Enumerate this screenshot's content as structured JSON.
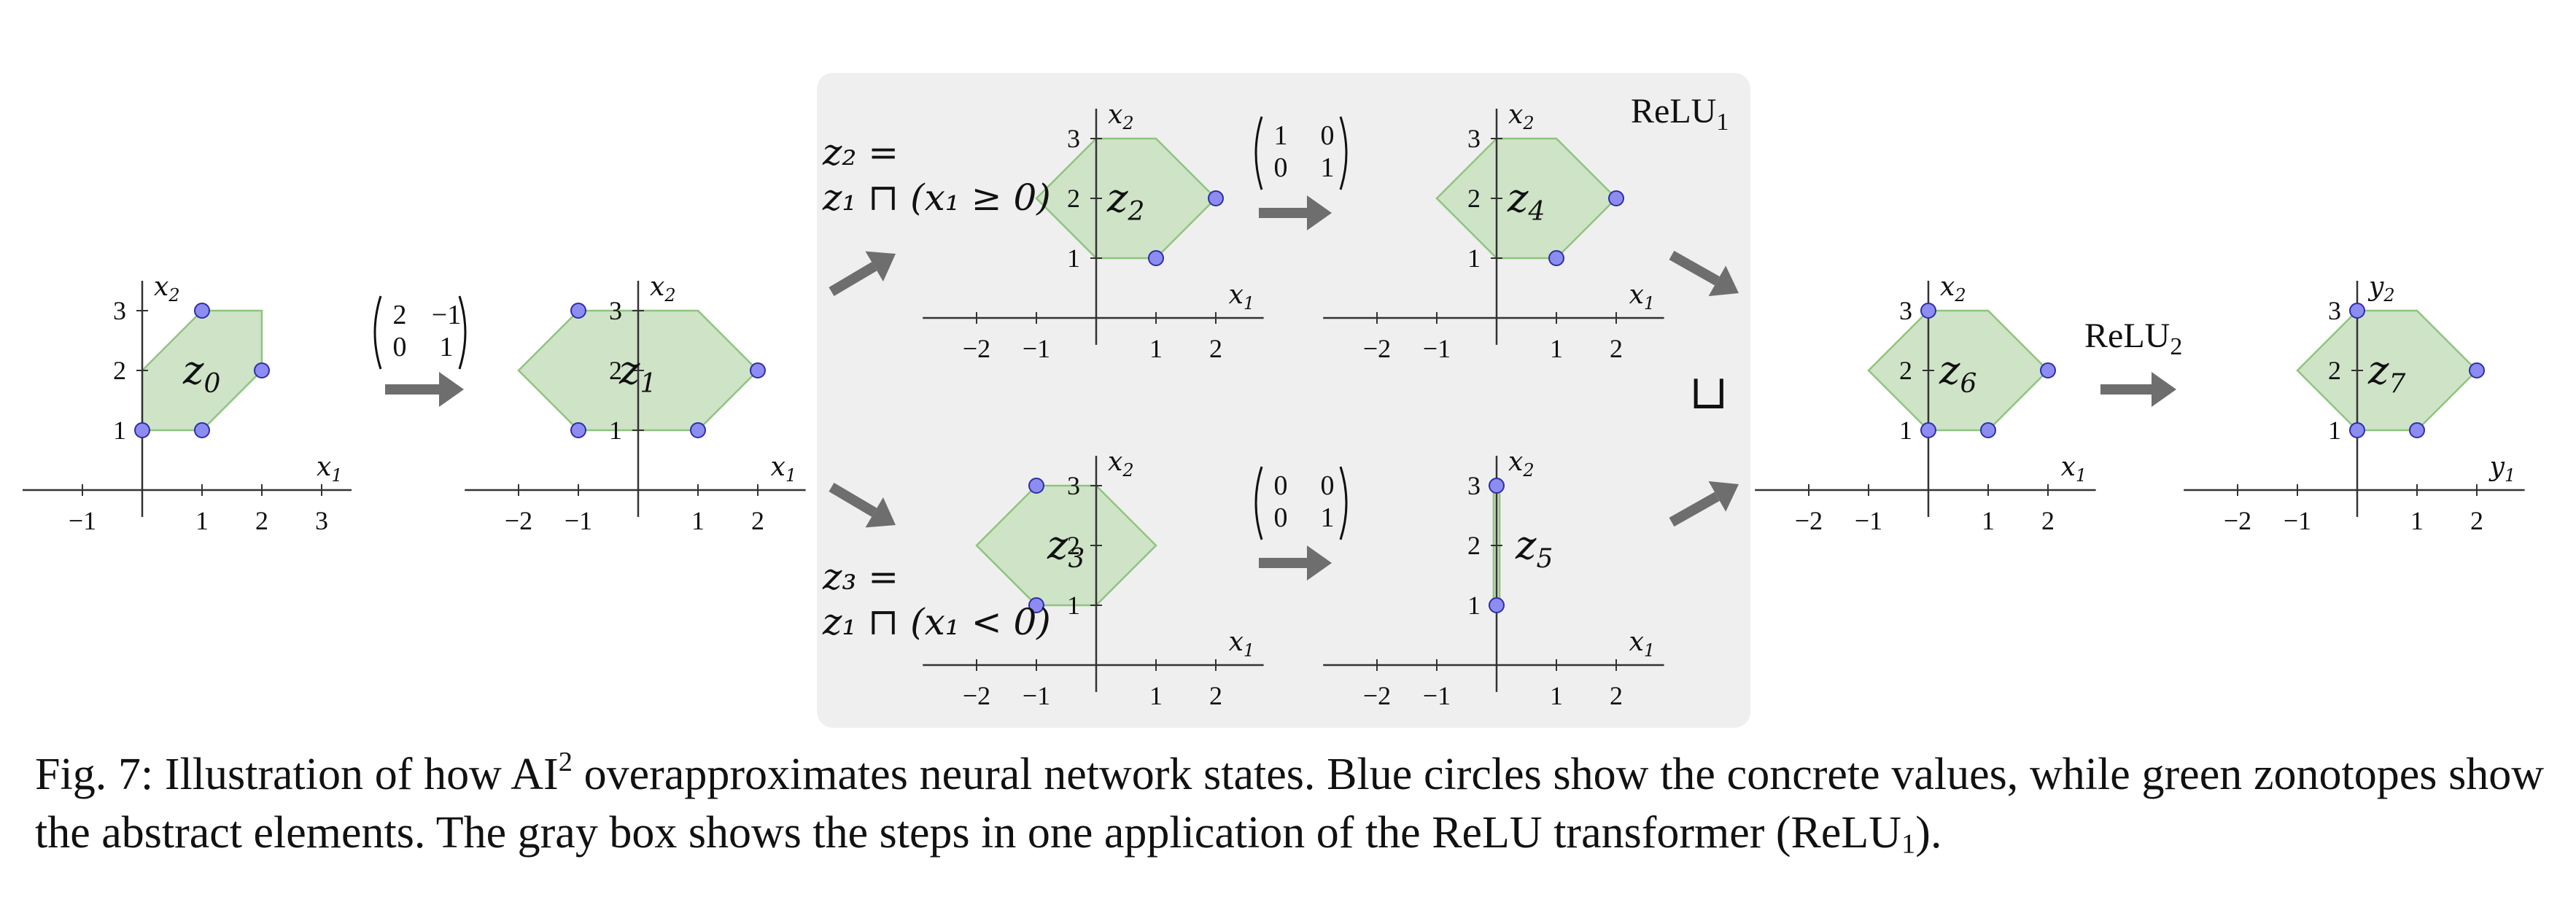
{
  "plots": [
    {
      "id": "z0",
      "label": "z",
      "label_sub": "0",
      "axis_x": "x",
      "axis_x_sub": "1",
      "axis_y": "x",
      "axis_y_sub": "2",
      "x_ticks": [
        "−1",
        "1",
        "2",
        "3"
      ],
      "x_tick_values": [
        -1,
        1,
        2,
        3
      ],
      "y_ticks": [
        "1",
        "2",
        "3"
      ],
      "y_tick_values": [
        1,
        2,
        3
      ],
      "polygon": [
        [
          0,
          1
        ],
        [
          0,
          2
        ],
        [
          1,
          3
        ],
        [
          2,
          3
        ],
        [
          2,
          2
        ],
        [
          1,
          1
        ]
      ],
      "points": [
        [
          0,
          1
        ],
        [
          1,
          1
        ],
        [
          2,
          2
        ],
        [
          1,
          3
        ]
      ]
    },
    {
      "id": "z1",
      "label": "z",
      "label_sub": "1",
      "axis_x": "x",
      "axis_x_sub": "1",
      "axis_y": "x",
      "axis_y_sub": "2",
      "x_ticks": [
        "−2",
        "−1",
        "1",
        "2"
      ],
      "x_tick_values": [
        -2,
        -1,
        1,
        2
      ],
      "y_ticks": [
        "1",
        "2",
        "3"
      ],
      "y_tick_values": [
        1,
        2,
        3
      ],
      "polygon": [
        [
          -1,
          1
        ],
        [
          -2,
          2
        ],
        [
          -1,
          3
        ],
        [
          1,
          3
        ],
        [
          2,
          2
        ],
        [
          1,
          1
        ]
      ],
      "points": [
        [
          -1,
          1
        ],
        [
          1,
          1
        ],
        [
          2,
          2
        ],
        [
          -1,
          3
        ]
      ]
    },
    {
      "id": "z2",
      "label": "z",
      "label_sub": "2",
      "axis_x": "x",
      "axis_x_sub": "1",
      "axis_y": "x",
      "axis_y_sub": "2",
      "x_ticks": [
        "−2",
        "−1",
        "1",
        "2"
      ],
      "x_tick_values": [
        -2,
        -1,
        1,
        2
      ],
      "y_ticks": [
        "1",
        "2",
        "3"
      ],
      "y_tick_values": [
        1,
        2,
        3
      ],
      "polygon": [
        [
          0,
          1
        ],
        [
          -1,
          2
        ],
        [
          0,
          3
        ],
        [
          1,
          3
        ],
        [
          2,
          2
        ],
        [
          1,
          1
        ]
      ],
      "points": [
        [
          1,
          1
        ],
        [
          2,
          2
        ]
      ]
    },
    {
      "id": "z4",
      "label": "z",
      "label_sub": "4",
      "axis_x": "x",
      "axis_x_sub": "1",
      "axis_y": "x",
      "axis_y_sub": "2",
      "x_ticks": [
        "−2",
        "−1",
        "1",
        "2"
      ],
      "x_tick_values": [
        -2,
        -1,
        1,
        2
      ],
      "y_ticks": [
        "1",
        "2",
        "3"
      ],
      "y_tick_values": [
        1,
        2,
        3
      ],
      "polygon": [
        [
          0,
          1
        ],
        [
          -1,
          2
        ],
        [
          0,
          3
        ],
        [
          1,
          3
        ],
        [
          2,
          2
        ],
        [
          1,
          1
        ]
      ],
      "points": [
        [
          1,
          1
        ],
        [
          2,
          2
        ]
      ]
    },
    {
      "id": "z3",
      "label": "z",
      "label_sub": "3",
      "axis_x": "x",
      "axis_x_sub": "1",
      "axis_y": "x",
      "axis_y_sub": "2",
      "x_ticks": [
        "−2",
        "−1",
        "1",
        "2"
      ],
      "x_tick_values": [
        -2,
        -1,
        1,
        2
      ],
      "y_ticks": [
        "1",
        "2",
        "3"
      ],
      "y_tick_values": [
        1,
        2,
        3
      ],
      "polygon": [
        [
          -1,
          1
        ],
        [
          -2,
          2
        ],
        [
          -1,
          3
        ],
        [
          0,
          3
        ],
        [
          1,
          2
        ],
        [
          0,
          1
        ]
      ],
      "points": [
        [
          -1,
          1
        ],
        [
          -1,
          3
        ]
      ]
    },
    {
      "id": "z5",
      "label": "z",
      "label_sub": "5",
      "axis_x": "x",
      "axis_x_sub": "1",
      "axis_y": "x",
      "axis_y_sub": "2",
      "x_ticks": [
        "−2",
        "−1",
        "1",
        "2"
      ],
      "x_tick_values": [
        -2,
        -1,
        1,
        2
      ],
      "y_ticks": [
        "1",
        "2",
        "3"
      ],
      "y_tick_values": [
        1,
        2,
        3
      ],
      "polygon": [
        [
          -0.05,
          1
        ],
        [
          -0.05,
          3
        ],
        [
          0.05,
          3
        ],
        [
          0.05,
          1
        ]
      ],
      "points": [
        [
          0,
          1
        ],
        [
          0,
          3
        ]
      ]
    },
    {
      "id": "z6",
      "label": "z",
      "label_sub": "6",
      "axis_x": "x",
      "axis_x_sub": "1",
      "axis_y": "x",
      "axis_y_sub": "2",
      "x_ticks": [
        "−2",
        "−1",
        "1",
        "2"
      ],
      "x_tick_values": [
        -2,
        -1,
        1,
        2
      ],
      "y_ticks": [
        "1",
        "2",
        "3"
      ],
      "y_tick_values": [
        1,
        2,
        3
      ],
      "polygon": [
        [
          0,
          1
        ],
        [
          -1,
          2
        ],
        [
          0,
          3
        ],
        [
          1,
          3
        ],
        [
          2,
          2
        ],
        [
          1,
          1
        ]
      ],
      "points": [
        [
          0,
          1
        ],
        [
          1,
          1
        ],
        [
          2,
          2
        ],
        [
          0,
          3
        ]
      ]
    },
    {
      "id": "z7",
      "label": "z",
      "label_sub": "7",
      "axis_x": "y",
      "axis_x_sub": "1",
      "axis_y": "y",
      "axis_y_sub": "2",
      "x_ticks": [
        "−2",
        "−1",
        "1",
        "2"
      ],
      "x_tick_values": [
        -2,
        -1,
        1,
        2
      ],
      "y_ticks": [
        "1",
        "2",
        "3"
      ],
      "y_tick_values": [
        1,
        2,
        3
      ],
      "polygon": [
        [
          0,
          1
        ],
        [
          -1,
          2
        ],
        [
          0,
          3
        ],
        [
          1,
          3
        ],
        [
          2,
          2
        ],
        [
          1,
          1
        ]
      ],
      "points": [
        [
          0,
          1
        ],
        [
          1,
          1
        ],
        [
          2,
          2
        ],
        [
          0,
          3
        ]
      ]
    }
  ],
  "matrices": [
    {
      "id": "W1",
      "rows": [
        [
          "2",
          "−1"
        ],
        [
          "0",
          "1"
        ]
      ]
    },
    {
      "id": "proj_keep",
      "rows": [
        [
          "1",
          "0"
        ],
        [
          "0",
          "1"
        ]
      ]
    },
    {
      "id": "proj_zero",
      "rows": [
        [
          "0",
          "0"
        ],
        [
          "0",
          "1"
        ]
      ]
    }
  ],
  "relu1": {
    "name": "ReLU",
    "sub": "1"
  },
  "relu2": {
    "name": "ReLU",
    "sub": "2"
  },
  "join_symbol": "⊔",
  "z2_def": {
    "line1": "z₂ =",
    "line2": "z₁ ⊓ (x₁ ≥ 0)"
  },
  "z3_def": {
    "line1": "z₃ =",
    "line2": "z₁ ⊓ (x₁ < 0)"
  },
  "caption": {
    "p1": "Fig. 7: Illustration of how AI",
    "sup": "2",
    "p2": " overapproximates neural network states. Blue circles show the concrete values, while green zonotopes show the abstract elements. The gray box shows the steps in one application of the ReLU transformer (ReLU",
    "sub": "1",
    "p3": ")."
  },
  "colors": {
    "zonotope_fill": "#cfe3c7",
    "zonotope_stroke": "#8fc47f",
    "point_fill": "#8c8cf2",
    "point_stroke": "#2e2ea8",
    "gray_box": "#efefef",
    "arrow": "#6e6e6e"
  }
}
